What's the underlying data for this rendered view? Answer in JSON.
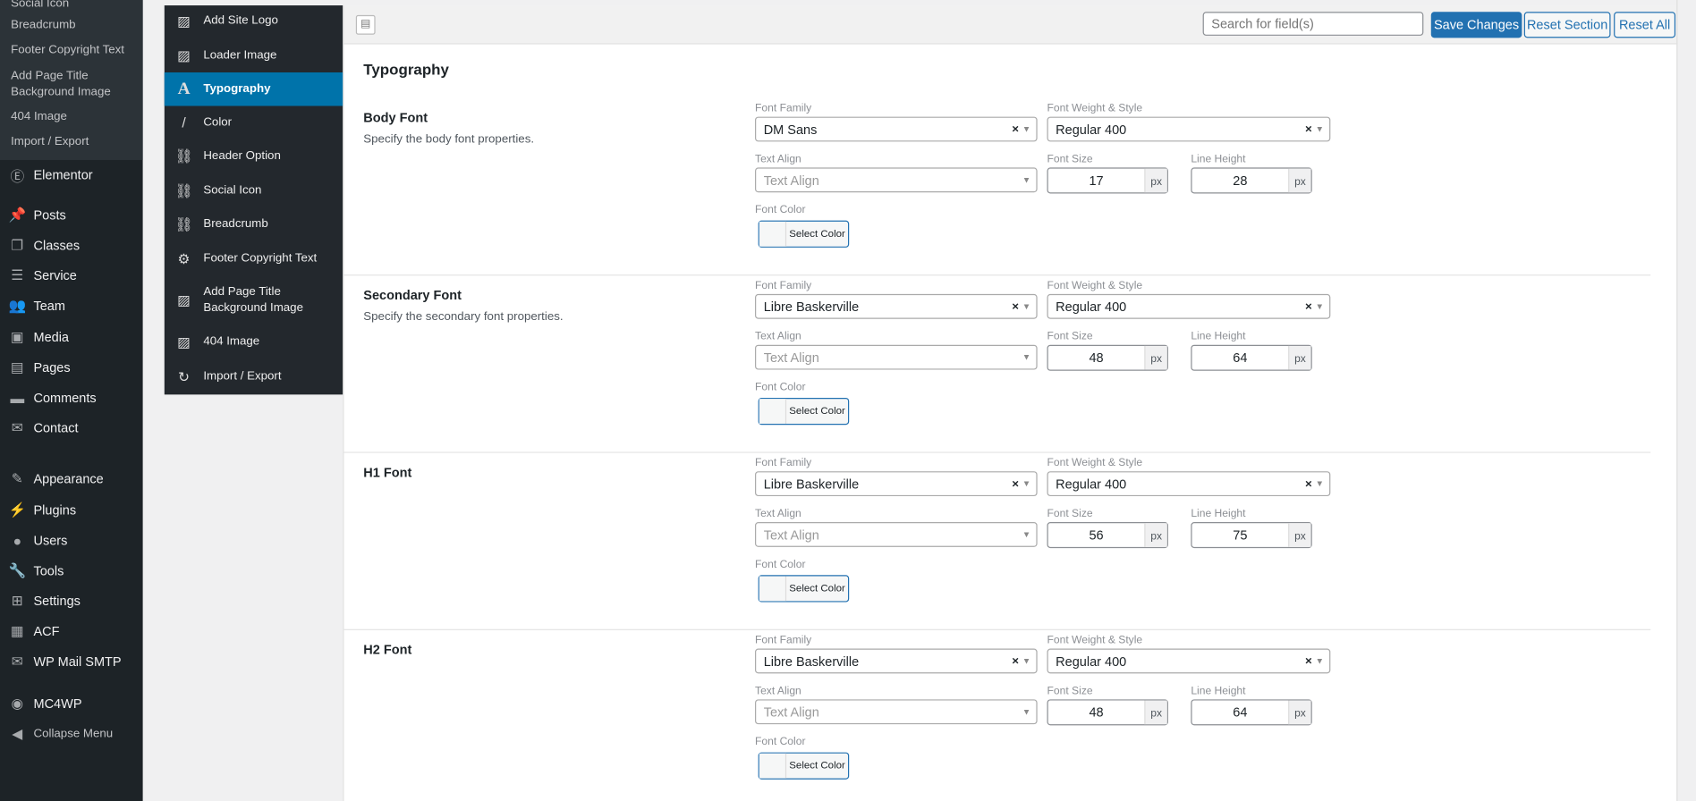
{
  "wp_submenu": [
    "Social Icon",
    "Breadcrumb",
    "Footer Copyright Text",
    "Add Page Title Background Image",
    "404 Image",
    "Import / Export"
  ],
  "wp_menu": [
    {
      "label": "Elementor",
      "icon": "elementor-icon"
    },
    {
      "label": "Posts",
      "icon": "pin-icon"
    },
    {
      "label": "Classes",
      "icon": "copy-icon"
    },
    {
      "label": "Service",
      "icon": "list-icon"
    },
    {
      "label": "Team",
      "icon": "groups-icon"
    },
    {
      "label": "Media",
      "icon": "media-icon"
    },
    {
      "label": "Pages",
      "icon": "page-icon"
    },
    {
      "label": "Comments",
      "icon": "comment-icon"
    },
    {
      "label": "Contact",
      "icon": "mail-icon"
    },
    {
      "label": "Appearance",
      "icon": "paintbrush-icon"
    },
    {
      "label": "Plugins",
      "icon": "plugin-icon"
    },
    {
      "label": "Users",
      "icon": "user-icon"
    },
    {
      "label": "Tools",
      "icon": "wrench-icon"
    },
    {
      "label": "Settings",
      "icon": "settings-icon"
    },
    {
      "label": "ACF",
      "icon": "acf-icon"
    },
    {
      "label": "WP Mail SMTP",
      "icon": "mail-smtp-icon"
    },
    {
      "label": "MC4WP",
      "icon": "mc4wp-icon"
    },
    {
      "label": "Collapse Menu",
      "icon": "collapse-icon"
    }
  ],
  "options_menu": [
    {
      "label": "Add Site Logo",
      "icon": "image-icon"
    },
    {
      "label": "Loader Image",
      "icon": "image-icon"
    },
    {
      "label": "Typography",
      "icon": "typography-icon",
      "active": true
    },
    {
      "label": "Color",
      "icon": "brush-icon"
    },
    {
      "label": "Header Option",
      "icon": "link-icon"
    },
    {
      "label": "Social Icon",
      "icon": "link-icon"
    },
    {
      "label": "Breadcrumb",
      "icon": "link-icon"
    },
    {
      "label": "Footer Copyright Text",
      "icon": "gear-icon"
    },
    {
      "label": "Add Page Title Background Image",
      "icon": "image-icon"
    },
    {
      "label": "404 Image",
      "icon": "image-icon"
    },
    {
      "label": "Import / Export",
      "icon": "refresh-icon"
    }
  ],
  "toolbar": {
    "search_placeholder": "Search for field(s)",
    "save": "Save Changes",
    "reset_section": "Reset Section",
    "reset_all": "Reset All"
  },
  "page_title": "Typography",
  "labels": {
    "font_family": "Font Family",
    "font_weight": "Font Weight & Style",
    "text_align": "Text Align",
    "font_size": "Font Size",
    "line_height": "Line Height",
    "font_color": "Font Color",
    "text_align_placeholder": "Text Align",
    "unit": "px",
    "select_color": "Select Color"
  },
  "sections": [
    {
      "title": "Body Font",
      "desc": "Specify the body font properties.",
      "family": "DM Sans",
      "weight": "Regular 400",
      "size": "17",
      "line_height": "28"
    },
    {
      "title": "Secondary Font",
      "desc": "Specify the secondary font properties.",
      "family": "Libre Baskerville",
      "weight": "Regular 400",
      "size": "48",
      "line_height": "64"
    },
    {
      "title": "H1 Font",
      "desc": "",
      "family": "Libre Baskerville",
      "weight": "Regular 400",
      "size": "56",
      "line_height": "75"
    },
    {
      "title": "H2 Font",
      "desc": "",
      "family": "Libre Baskerville",
      "weight": "Regular 400",
      "size": "48",
      "line_height": "64"
    }
  ],
  "colors": {
    "accent": "#2271b1",
    "active_menu": "#0073aa",
    "sidebar": "#1d2327"
  }
}
